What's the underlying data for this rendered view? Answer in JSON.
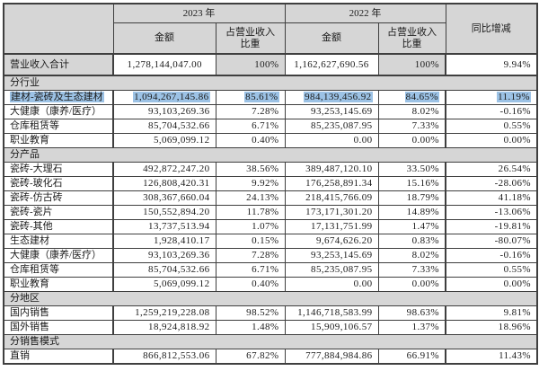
{
  "colors": {
    "header_bg": "#d6d6d6",
    "selection_highlight": "#9cc2e5",
    "border": "#3f3f3f"
  },
  "table": {
    "header": {
      "year_2023": "2023 年",
      "year_2022": "2022 年",
      "amount": "金额",
      "share": "占营业收入比重",
      "yoy": "同比增减"
    },
    "total_row": {
      "label": "营业收入合计",
      "cells": [
        "1,278,144,047.00",
        "100%",
        "1,162,627,690.56",
        "100%",
        "9.94%"
      ]
    },
    "rows": [
      {
        "type": "section",
        "label": "分行业"
      },
      {
        "type": "data",
        "highlight": true,
        "label": "建材-瓷砖及生态建材",
        "cells": [
          "1,094,267,145.86",
          "85.61%",
          "984,139,456.92",
          "84.65%",
          "11.19%"
        ]
      },
      {
        "type": "data",
        "label": "大健康（康养/医疗）",
        "cells": [
          "93,103,269.36",
          "7.28%",
          "93,253,145.69",
          "8.02%",
          "-0.16%"
        ]
      },
      {
        "type": "data",
        "label": "仓库租赁等",
        "cells": [
          "85,704,532.66",
          "6.71%",
          "85,235,087.95",
          "7.33%",
          "0.55%"
        ]
      },
      {
        "type": "data",
        "label": "职业教育",
        "cells": [
          "5,069,099.12",
          "0.40%",
          "0.00",
          "0.00%",
          "0.00%"
        ]
      },
      {
        "type": "section",
        "label": "分产品"
      },
      {
        "type": "data",
        "label": "瓷砖-大理石",
        "cells": [
          "492,872,247.20",
          "38.56%",
          "389,487,120.10",
          "33.50%",
          "26.54%"
        ]
      },
      {
        "type": "data",
        "label": "瓷砖-玻化石",
        "cells": [
          "126,808,420.31",
          "9.92%",
          "176,258,891.34",
          "15.16%",
          "-28.06%"
        ]
      },
      {
        "type": "data",
        "label": "瓷砖-仿古砖",
        "cells": [
          "308,367,660.04",
          "24.13%",
          "218,415,766.09",
          "18.79%",
          "41.18%"
        ]
      },
      {
        "type": "data",
        "label": "瓷砖-瓷片",
        "cells": [
          "150,552,894.20",
          "11.78%",
          "173,171,301.20",
          "14.89%",
          "-13.06%"
        ]
      },
      {
        "type": "data",
        "label": "瓷砖-其他",
        "cells": [
          "13,737,513.94",
          "1.07%",
          "17,131,751.99",
          "1.47%",
          "-19.81%"
        ]
      },
      {
        "type": "data",
        "label": "生态建材",
        "cells": [
          "1,928,410.17",
          "0.15%",
          "9,674,626.20",
          "0.83%",
          "-80.07%"
        ]
      },
      {
        "type": "data",
        "label": "大健康（康养/医疗）",
        "cells": [
          "93,103,269.36",
          "7.28%",
          "93,253,145.69",
          "8.02%",
          "-0.16%"
        ]
      },
      {
        "type": "data",
        "label": "仓库租赁等",
        "cells": [
          "85,704,532.66",
          "6.71%",
          "85,235,087.95",
          "7.33%",
          "0.55%"
        ]
      },
      {
        "type": "data",
        "label": "职业教育",
        "cells": [
          "5,069,099.12",
          "0.40%",
          "0.00",
          "0.00%",
          "0.00%"
        ]
      },
      {
        "type": "section",
        "label": "分地区"
      },
      {
        "type": "data",
        "label": "国内销售",
        "cells": [
          "1,259,219,228.08",
          "98.52%",
          "1,146,718,583.99",
          "98.63%",
          "9.81%"
        ]
      },
      {
        "type": "data",
        "label": "国外销售",
        "cells": [
          "18,924,818.92",
          "1.48%",
          "15,909,106.57",
          "1.37%",
          "18.96%"
        ]
      },
      {
        "type": "section",
        "label": "分销售模式"
      },
      {
        "type": "data",
        "label": "直销",
        "cells": [
          "866,812,553.06",
          "67.82%",
          "777,884,984.86",
          "66.91%",
          "11.43%"
        ]
      }
    ]
  }
}
